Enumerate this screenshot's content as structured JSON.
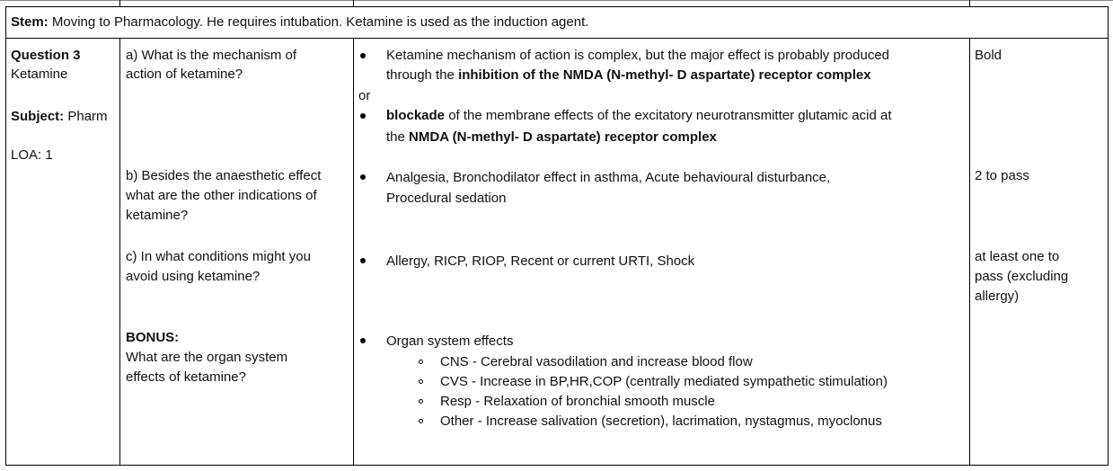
{
  "stem": {
    "label": "Stem:",
    "text": " Moving to Pharmacology. He requires intubation. Ketamine is used as the induction agent."
  },
  "meta": {
    "question_label": "Question 3",
    "question_topic": "Ketamine",
    "subject_label": "Subject:",
    "subject_value": " Pharm",
    "loa": "LOA: 1"
  },
  "q_a": {
    "question_line1": "a) What is the mechanism of",
    "question_line2": "action of ketamine?",
    "answer1_line1": "Ketamine mechanism of action is complex, but the major effect is probably produced",
    "answer1_line2_pre": "through the ",
    "answer1_line2_bold": "inhibition of the NMDA (N-methyl- D aspartate) receptor complex",
    "or_text": "or",
    "answer2_line1_bold": "blockade",
    "answer2_line1_rest": " of the membrane effects of the excitatory neurotransmitter glutamic acid at",
    "answer2_line2_pre": "the ",
    "answer2_line2_bold": "NMDA (N-methyl- D aspartate) receptor complex",
    "mark": "Bold"
  },
  "q_b": {
    "question_line1": "b) Besides the anaesthetic effect",
    "question_line2": "what are the other indications of",
    "question_line3": "ketamine?",
    "answer_line1": "Analgesia, Bronchodilator effect in asthma, Acute behavioural disturbance,",
    "answer_line2": "Procedural sedation",
    "mark": "2 to pass"
  },
  "q_c": {
    "question_line1": "c) In what conditions might you",
    "question_line2": "avoid using ketamine?",
    "answer": "Allergy, RICP, RIOP, Recent or current URTI, Shock",
    "mark_line1": "at least one to",
    "mark_line2": "pass (excluding",
    "mark_line3": "allergy)"
  },
  "bonus": {
    "label": "BONUS:",
    "question_line1": "What are the organ system",
    "question_line2": "effects of ketamine?",
    "answer_head": "Organ system effects",
    "effects": [
      "CNS - Cerebral vasodilation and increase blood flow",
      "CVS - Increase in BP,HR,COP (centrally mediated sympathetic stimulation)",
      "Resp - Relaxation of bronchial smooth muscle",
      "Other - Increase salivation (secretion), lacrimation, nystagmus, myoclonus"
    ]
  }
}
